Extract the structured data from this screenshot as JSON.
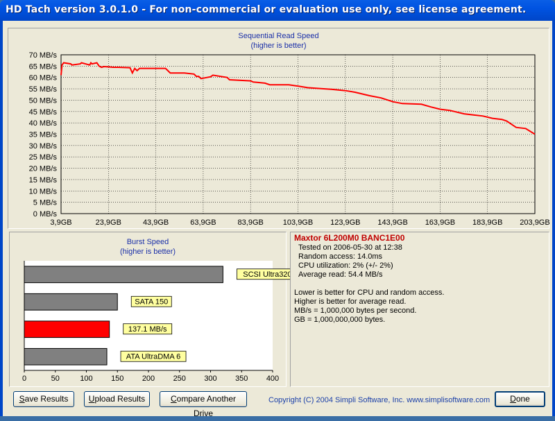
{
  "window": {
    "title": "HD Tach version 3.0.1.0  - For non-commercial or evaluation use only, see license agreement."
  },
  "seq_chart": {
    "title_line1": "Sequential Read Speed",
    "title_line2": "(higher is better)"
  },
  "burst_chart": {
    "title_line1": "Burst Speed",
    "title_line2": "(higher is better)"
  },
  "info": {
    "drive": "Maxtor 6L200M0 BANC1E00",
    "tested_on": "Tested on 2006-05-30 at 12:38",
    "random_access": "Random access: 14.0ms",
    "cpu": "CPU utilization: 2% (+/- 2%)",
    "avg_read": "Average read: 54.4 MB/s",
    "note1": "Lower is better for CPU and random access.",
    "note2": "Higher is better for average read.",
    "note3": "MB/s = 1,000,000 bytes per second.",
    "note4": "GB = 1,000,000,000 bytes."
  },
  "buttons": {
    "save_u": "S",
    "save_rest": "ave Results",
    "upload_u": "U",
    "upload_rest": "pload Results",
    "compare_u": "C",
    "compare_rest": "ompare Another Drive",
    "done_u": "D",
    "done_rest": "one"
  },
  "copyright": "Copyright (C) 2004 Simpli Software, Inc. www.simplisoftware.com",
  "chart_data": [
    {
      "type": "line",
      "title": "Sequential Read Speed",
      "subtitle": "(higher is better)",
      "y_tick_labels": [
        "0 MB/s",
        "5 MB/s",
        "10 MB/s",
        "15 MB/s",
        "20 MB/s",
        "25 MB/s",
        "30 MB/s",
        "35 MB/s",
        "40 MB/s",
        "45 MB/s",
        "50 MB/s",
        "55 MB/s",
        "60 MB/s",
        "65 MB/s",
        "70 MB/s"
      ],
      "x_tick_labels": [
        "3,9GB",
        "23,9GB",
        "43,9GB",
        "63,9GB",
        "83,9GB",
        "103,9GB",
        "123,9GB",
        "143,9GB",
        "163,9GB",
        "183,9GB",
        "203,9GB"
      ],
      "xlim": [
        3.9,
        203.9
      ],
      "ylim": [
        0,
        70
      ],
      "grid": true,
      "color": "#ff0000",
      "x": [
        3.9,
        4.3,
        5.0,
        8.0,
        8.5,
        12.0,
        12.5,
        16.0,
        16.5,
        17.0,
        19.0,
        20.0,
        21.0,
        22.0,
        26.0,
        28.0,
        33.0,
        34.0,
        35.0,
        36.0,
        37.0,
        42.0,
        48.0,
        49.0,
        50.0,
        56.0,
        60.0,
        61.0,
        62.0,
        63.0,
        67.0,
        68.0,
        74.0,
        75.0,
        84.0,
        85.0,
        87.0,
        90.0,
        92.0,
        100.0,
        103.9,
        108.0,
        112.0,
        118.0,
        124.0,
        128.0,
        134.0,
        139.0,
        144.0,
        148.0,
        156.0,
        160.0,
        163.9,
        168.0,
        174.0,
        178.0,
        182.0,
        186.0,
        190.0,
        192.0,
        196.0,
        200.0,
        203.9
      ],
      "y": [
        61.0,
        65.5,
        66.5,
        66.0,
        65.5,
        66.0,
        66.5,
        65.5,
        66.5,
        66.0,
        66.5,
        65.0,
        64.5,
        64.8,
        64.5,
        64.5,
        64.3,
        62.0,
        64.0,
        63.0,
        64.0,
        64.0,
        64.0,
        63.0,
        62.0,
        62.0,
        61.5,
        60.5,
        60.5,
        59.5,
        60.3,
        61.0,
        60.0,
        59.0,
        58.5,
        58.0,
        57.8,
        57.5,
        56.8,
        56.8,
        56.2,
        55.5,
        55.2,
        54.8,
        54.2,
        53.5,
        52.0,
        51.0,
        49.3,
        48.5,
        48.2,
        47.0,
        46.0,
        45.5,
        44.0,
        43.5,
        43.0,
        42.0,
        41.5,
        40.8,
        38.0,
        37.5,
        35.0
      ]
    },
    {
      "type": "bar",
      "title": "Burst Speed",
      "subtitle": "(higher is better)",
      "orientation": "horizontal",
      "categories": [
        "SCSI Ultra320",
        "SATA 150",
        "137.1 MB/s",
        "ATA UltraDMA 6"
      ],
      "values": [
        320,
        150,
        137.1,
        133
      ],
      "colors": [
        "#808080",
        "#808080",
        "#ff0000",
        "#808080"
      ],
      "x_tick_labels": [
        "0",
        "50",
        "100",
        "150",
        "200",
        "250",
        "300",
        "350",
        "400"
      ],
      "xlim": [
        0,
        400
      ],
      "label_bg": "#ffffa0"
    }
  ]
}
